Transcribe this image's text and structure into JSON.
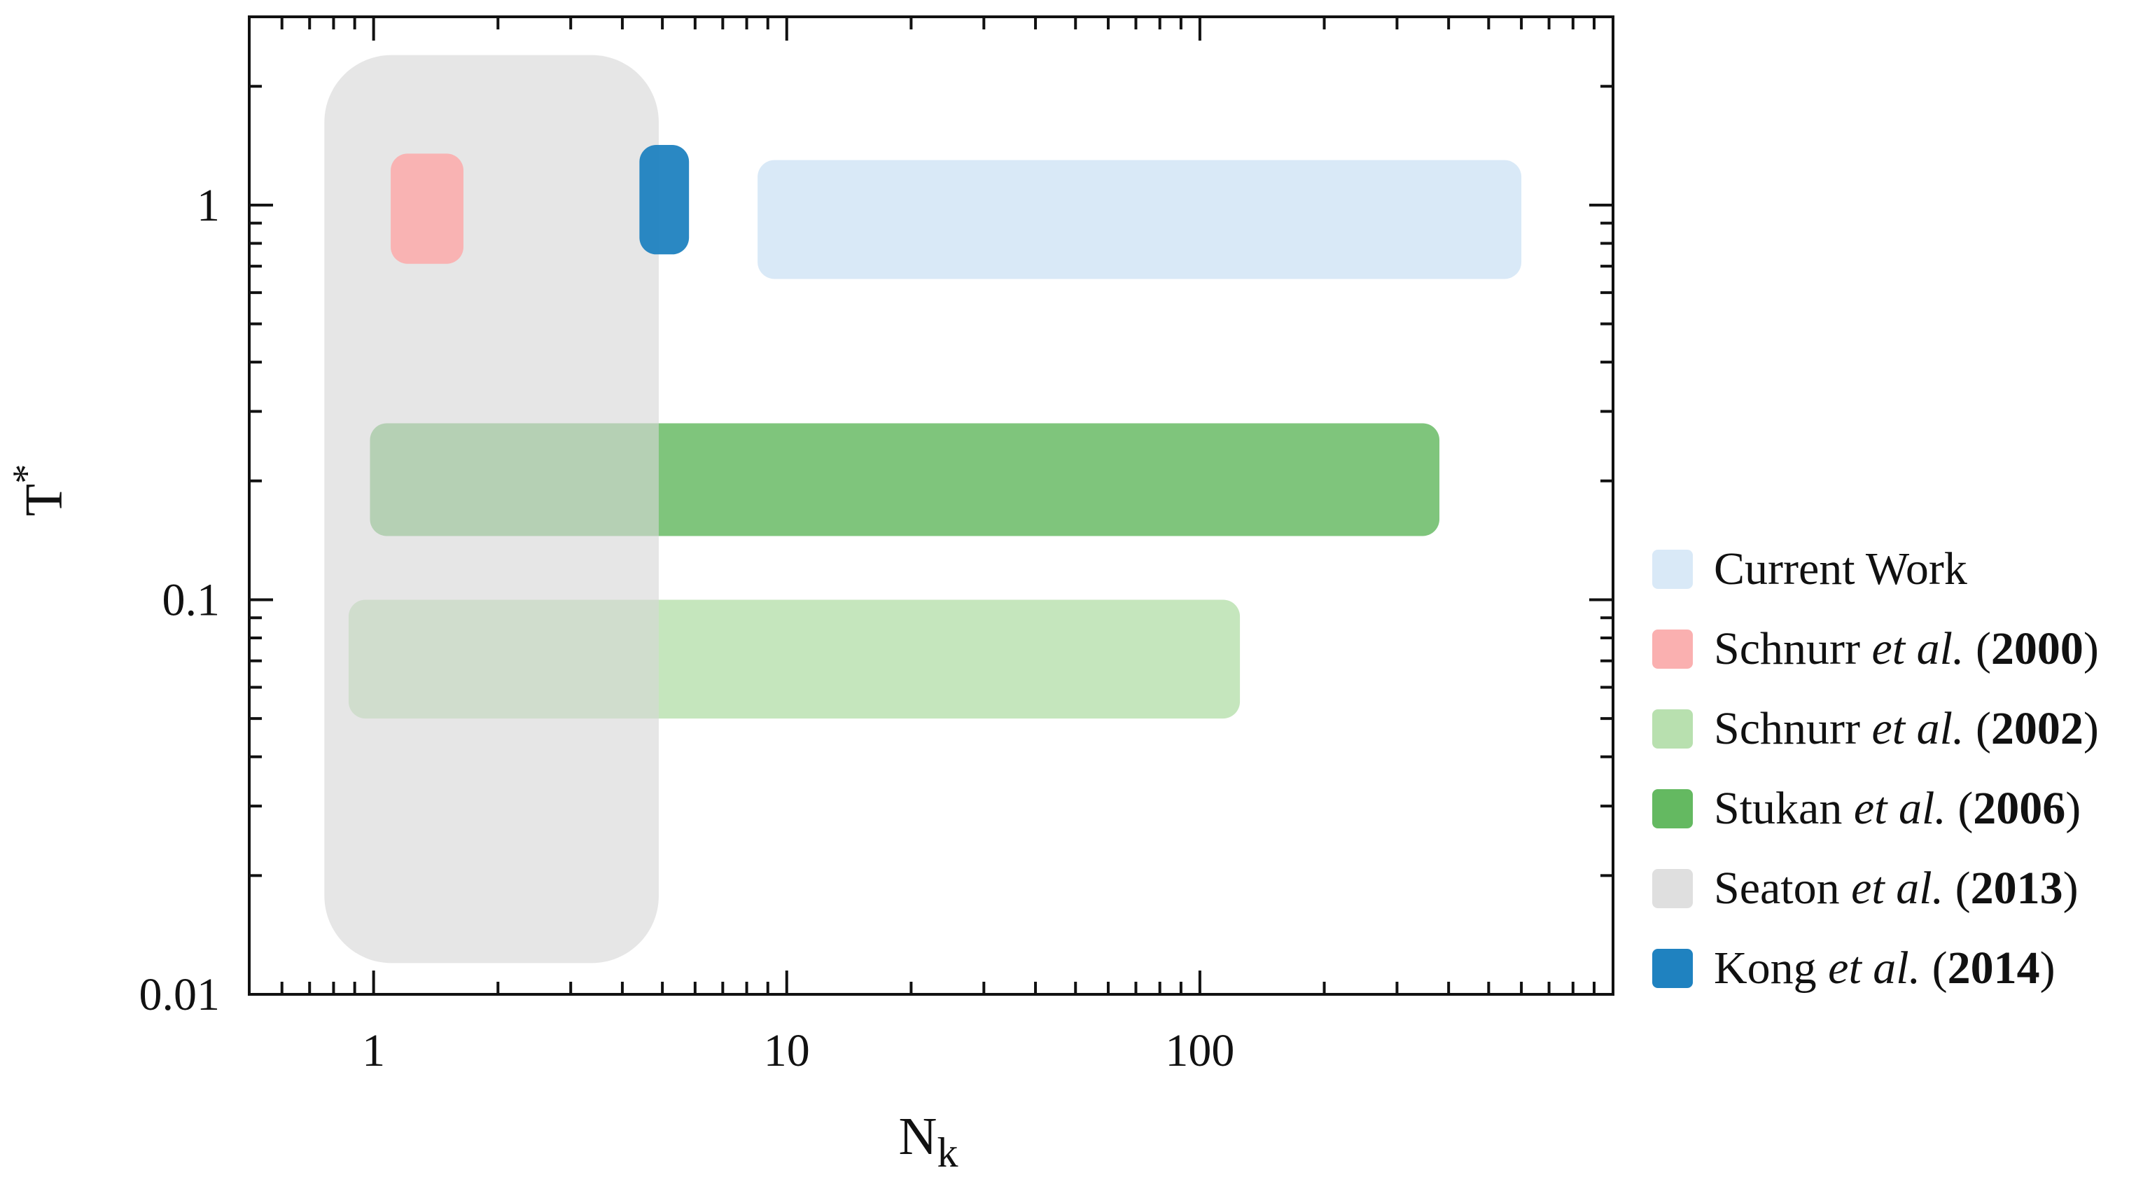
{
  "chart_data": {
    "type": "range",
    "xlabel": "N",
    "xlabel_sub": "k",
    "ylabel": "T",
    "ylabel_sup": "*",
    "xscale": "log",
    "yscale": "log",
    "xlim": [
      0.5,
      1000
    ],
    "ylim": [
      0.01,
      3
    ],
    "xticks": [
      1,
      10,
      100
    ],
    "xtick_labels": [
      "1",
      "10",
      "100"
    ],
    "yticks": [
      0.01,
      0.1,
      1
    ],
    "ytick_labels": [
      "0.01",
      "0.1",
      "1"
    ],
    "grid": false,
    "legend_position": "right",
    "series": [
      {
        "name": "Current Work",
        "author": "Current Work",
        "etal": "",
        "year": "",
        "color": "#d9e9f7",
        "opacity": 1,
        "x_range": [
          8.5,
          600
        ],
        "y_range": [
          0.65,
          1.3
        ]
      },
      {
        "name": "Schnurr et al. (2000)",
        "author": "Schnurr",
        "etal": "et al.",
        "year": "2000",
        "color": "#fab0b0",
        "opacity": 0.95,
        "x_range": [
          1.1,
          1.65
        ],
        "y_range": [
          0.71,
          1.35
        ]
      },
      {
        "name": "Schnurr et al. (2002)",
        "author": "Schnurr",
        "etal": "et al.",
        "year": "2002",
        "color": "#acdba1",
        "opacity": 0.7,
        "x_range": [
          0.87,
          125
        ],
        "y_range": [
          0.05,
          0.1
        ]
      },
      {
        "name": "Stukan et al. (2006)",
        "author": "Stukan",
        "etal": "et al.",
        "year": "2006",
        "color": "#4daf4a",
        "opacity": 0.72,
        "x_range": [
          0.98,
          380
        ],
        "y_range": [
          0.145,
          0.28
        ]
      },
      {
        "name": "Seaton et al. (2013)",
        "author": "Seaton",
        "etal": "et al.",
        "year": "2013",
        "color": "#d6d6d6",
        "opacity": 0.62,
        "x_range": [
          0.76,
          4.9
        ],
        "y_range": [
          0.012,
          2.4
        ]
      },
      {
        "name": "Kong et al. (2014)",
        "author": "Kong",
        "etal": "et al.",
        "year": "2014",
        "color": "#1f82c0",
        "opacity": 0.95,
        "x_range": [
          4.4,
          5.8
        ],
        "y_range": [
          0.75,
          1.42
        ]
      }
    ]
  }
}
